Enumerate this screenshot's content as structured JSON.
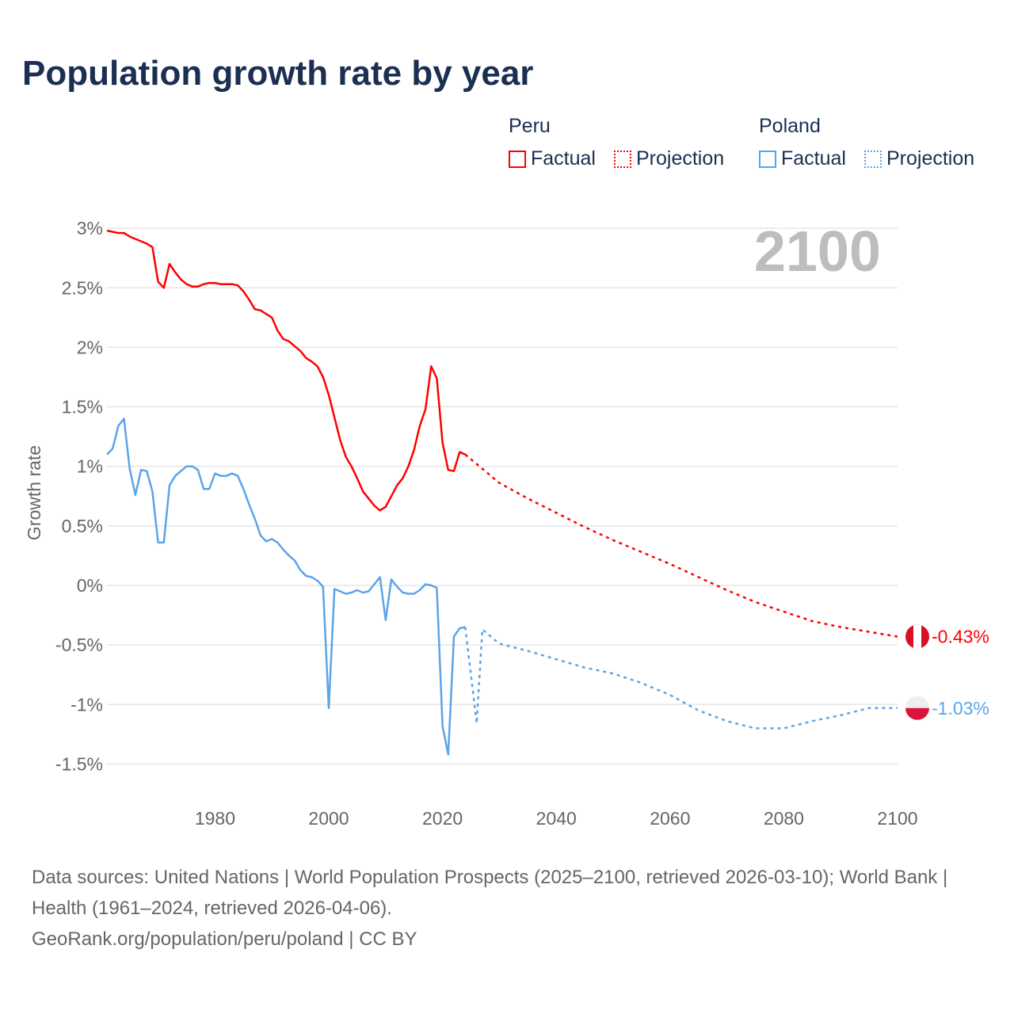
{
  "title": "Population growth rate by year",
  "legend": {
    "groups": [
      {
        "country": "Peru",
        "factual": "Factual",
        "projection": "Projection",
        "color": "#ff0000"
      },
      {
        "country": "Poland",
        "factual": "Factual",
        "projection": "Projection",
        "color": "#5ba4e8"
      }
    ]
  },
  "year_watermark": "2100",
  "footer": {
    "sources": "Data sources: United Nations | World Population Prospects (2025–2100, retrieved 2026-03-10); World Bank | Health (1961–2024, retrieved 2026-04-06).",
    "credit": "GeoRank.org/population/peru/poland | CC BY"
  },
  "chart_data": {
    "type": "line",
    "title": "Population growth rate by year",
    "ylabel": "Growth rate",
    "xlabel": "",
    "xlim": [
      1961,
      2100
    ],
    "ylim": [
      -1.5,
      3
    ],
    "xticks": [
      1980,
      2000,
      2020,
      2040,
      2060,
      2080,
      2100
    ],
    "yticks": [
      3,
      2.5,
      2,
      1.5,
      1,
      0.5,
      0,
      -0.5,
      -1,
      -1.5
    ],
    "ytick_labels": [
      "3%",
      "2.5%",
      "2%",
      "1.5%",
      "1%",
      "0.5%",
      "0%",
      "-0.5%",
      "-1%",
      "-1.5%"
    ],
    "grid": true,
    "legend_position": "top-right",
    "series": [
      {
        "name": "Peru",
        "kind": "factual",
        "color": "#ff0000",
        "x": [
          1961,
          1962,
          1963,
          1964,
          1965,
          1966,
          1967,
          1968,
          1969,
          1970,
          1971,
          1972,
          1973,
          1974,
          1975,
          1976,
          1977,
          1978,
          1979,
          1980,
          1981,
          1982,
          1983,
          1984,
          1985,
          1986,
          1987,
          1988,
          1989,
          1990,
          1991,
          1992,
          1993,
          1994,
          1995,
          1996,
          1997,
          1998,
          1999,
          2000,
          2001,
          2002,
          2003,
          2004,
          2005,
          2006,
          2007,
          2008,
          2009,
          2010,
          2011,
          2012,
          2013,
          2014,
          2015,
          2016,
          2017,
          2018,
          2019,
          2020,
          2021,
          2022,
          2023,
          2024
        ],
        "y": [
          2.98,
          2.97,
          2.96,
          2.96,
          2.93,
          2.91,
          2.89,
          2.87,
          2.84,
          2.55,
          2.5,
          2.7,
          2.63,
          2.57,
          2.53,
          2.51,
          2.51,
          2.53,
          2.54,
          2.54,
          2.53,
          2.53,
          2.53,
          2.52,
          2.47,
          2.4,
          2.32,
          2.31,
          2.28,
          2.25,
          2.14,
          2.07,
          2.05,
          2.01,
          1.97,
          1.91,
          1.88,
          1.84,
          1.75,
          1.6,
          1.41,
          1.22,
          1.08,
          1.0,
          0.9,
          0.79,
          0.73,
          0.67,
          0.63,
          0.66,
          0.75,
          0.84,
          0.9,
          1.0,
          1.14,
          1.34,
          1.48,
          1.84,
          1.74,
          1.2,
          0.97,
          0.96,
          1.12,
          1.1
        ]
      },
      {
        "name": "Peru",
        "kind": "projection",
        "color": "#ff0000",
        "x": [
          2024,
          2025,
          2030,
          2035,
          2040,
          2045,
          2050,
          2055,
          2060,
          2065,
          2070,
          2075,
          2080,
          2085,
          2090,
          2095,
          2100
        ],
        "y": [
          1.1,
          1.06,
          0.86,
          0.73,
          0.61,
          0.49,
          0.38,
          0.28,
          0.18,
          0.07,
          -0.04,
          -0.14,
          -0.22,
          -0.3,
          -0.35,
          -0.39,
          -0.43
        ]
      },
      {
        "name": "Poland",
        "kind": "factual",
        "color": "#5ba4e8",
        "x": [
          1961,
          1962,
          1963,
          1964,
          1965,
          1966,
          1967,
          1968,
          1969,
          1970,
          1971,
          1972,
          1973,
          1974,
          1975,
          1976,
          1977,
          1978,
          1979,
          1980,
          1981,
          1982,
          1983,
          1984,
          1985,
          1986,
          1987,
          1988,
          1989,
          1990,
          1991,
          1992,
          1993,
          1994,
          1995,
          1996,
          1997,
          1998,
          1999,
          2000,
          2001,
          2002,
          2003,
          2004,
          2005,
          2006,
          2007,
          2008,
          2009,
          2010,
          2011,
          2012,
          2013,
          2014,
          2015,
          2016,
          2017,
          2018,
          2019,
          2020,
          2021,
          2022,
          2023,
          2024
        ],
        "y": [
          1.1,
          1.15,
          1.34,
          1.4,
          0.98,
          0.76,
          0.97,
          0.96,
          0.79,
          0.36,
          0.36,
          0.84,
          0.92,
          0.96,
          1.0,
          1.0,
          0.97,
          0.81,
          0.81,
          0.94,
          0.92,
          0.92,
          0.94,
          0.92,
          0.81,
          0.68,
          0.56,
          0.42,
          0.37,
          0.39,
          0.36,
          0.3,
          0.25,
          0.21,
          0.13,
          0.08,
          0.07,
          0.04,
          -0.01,
          -1.03,
          -0.03,
          -0.05,
          -0.07,
          -0.06,
          -0.04,
          -0.06,
          -0.05,
          0.01,
          0.07,
          -0.29,
          0.05,
          -0.01,
          -0.06,
          -0.07,
          -0.07,
          -0.04,
          0.01,
          0.0,
          -0.02,
          -1.18,
          -1.42,
          -0.43,
          -0.36,
          -0.35
        ]
      },
      {
        "name": "Poland",
        "kind": "projection",
        "color": "#5ba4e8",
        "x": [
          2024,
          2025,
          2026,
          2027,
          2030,
          2035,
          2040,
          2045,
          2050,
          2055,
          2060,
          2065,
          2070,
          2075,
          2080,
          2085,
          2090,
          2095,
          2100
        ],
        "y": [
          -0.35,
          -0.75,
          -1.16,
          -0.37,
          -0.49,
          -0.55,
          -0.62,
          -0.69,
          -0.74,
          -0.82,
          -0.92,
          -1.05,
          -1.14,
          -1.2,
          -1.2,
          -1.14,
          -1.09,
          -1.03,
          -1.03
        ]
      }
    ],
    "end_labels": [
      {
        "country": "Peru",
        "label": "-0.43%",
        "value": -0.43,
        "color": "#ff0000"
      },
      {
        "country": "Poland",
        "label": "-1.03%",
        "value": -1.03,
        "color": "#5ba4e8"
      }
    ]
  }
}
